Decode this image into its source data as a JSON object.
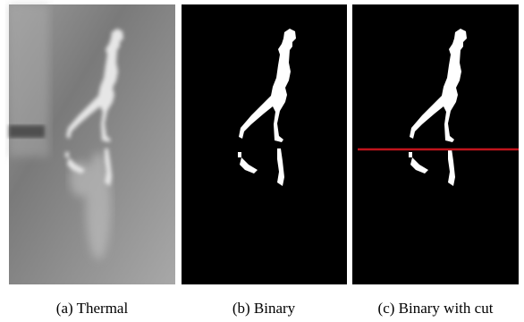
{
  "figure": {
    "panels": [
      {
        "caption": "(a) Thermal"
      },
      {
        "caption": "(b) Binary"
      },
      {
        "caption": "(c) Binary with cut"
      }
    ]
  }
}
